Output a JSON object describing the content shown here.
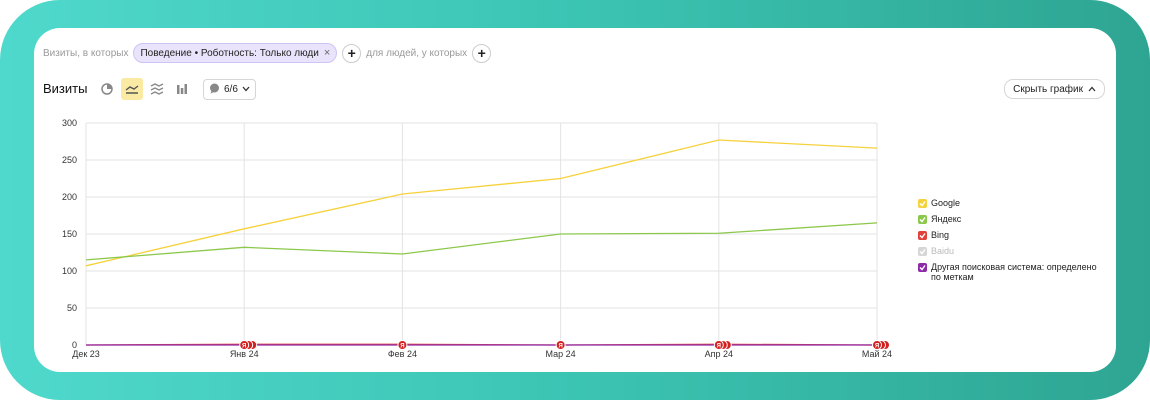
{
  "filters": {
    "prefix": "Визиты, в которых",
    "chip_label": "Поведение • Роботность: Только люди",
    "chip_close": "×",
    "plus_label": "+",
    "middle": "для людей, у которых"
  },
  "toolbar": {
    "title": "Визиты",
    "counter": "6/6",
    "hide_chart": "Скрыть график"
  },
  "chart_data": {
    "type": "line",
    "x": [
      "Дек 23",
      "Янв 24",
      "Фев 24",
      "Мар 24",
      "Апр 24",
      "Май 24"
    ],
    "ylim": [
      0,
      300
    ],
    "yticks": [
      0,
      50,
      100,
      150,
      200,
      250,
      300
    ],
    "grid": true,
    "legend_position": "right",
    "series": [
      {
        "name": "Google",
        "color": "#f5d23c",
        "values": [
          107,
          157,
          204,
          225,
          277,
          266
        ],
        "visible": true
      },
      {
        "name": "Яндекс",
        "color": "#8cc84b",
        "values": [
          115,
          132,
          123,
          150,
          151,
          165
        ],
        "visible": true
      },
      {
        "name": "Bing",
        "color": "#e2413a",
        "values": [
          0,
          1,
          1,
          0,
          1,
          0
        ],
        "visible": true
      },
      {
        "name": "Baidu",
        "color": "#cccccc",
        "values": [
          0,
          0,
          0,
          0,
          0,
          0
        ],
        "visible": false
      },
      {
        "name": "Другая поисковая система: определено по меткам",
        "color": "#8e2aa8",
        "values": [
          0,
          0,
          0,
          0,
          0,
          0
        ],
        "visible": true
      }
    ],
    "annotation_markers": [
      {
        "x": "Янв 24",
        "count": 3,
        "label": "Я"
      },
      {
        "x": "Фев 24",
        "count": 1,
        "label": "Я"
      },
      {
        "x": "Мар 24",
        "count": 1,
        "label": "Я"
      },
      {
        "x": "Апр 24",
        "count": 3,
        "label": "Я"
      },
      {
        "x": "Май 24",
        "count": 3,
        "label": "Я"
      }
    ]
  }
}
